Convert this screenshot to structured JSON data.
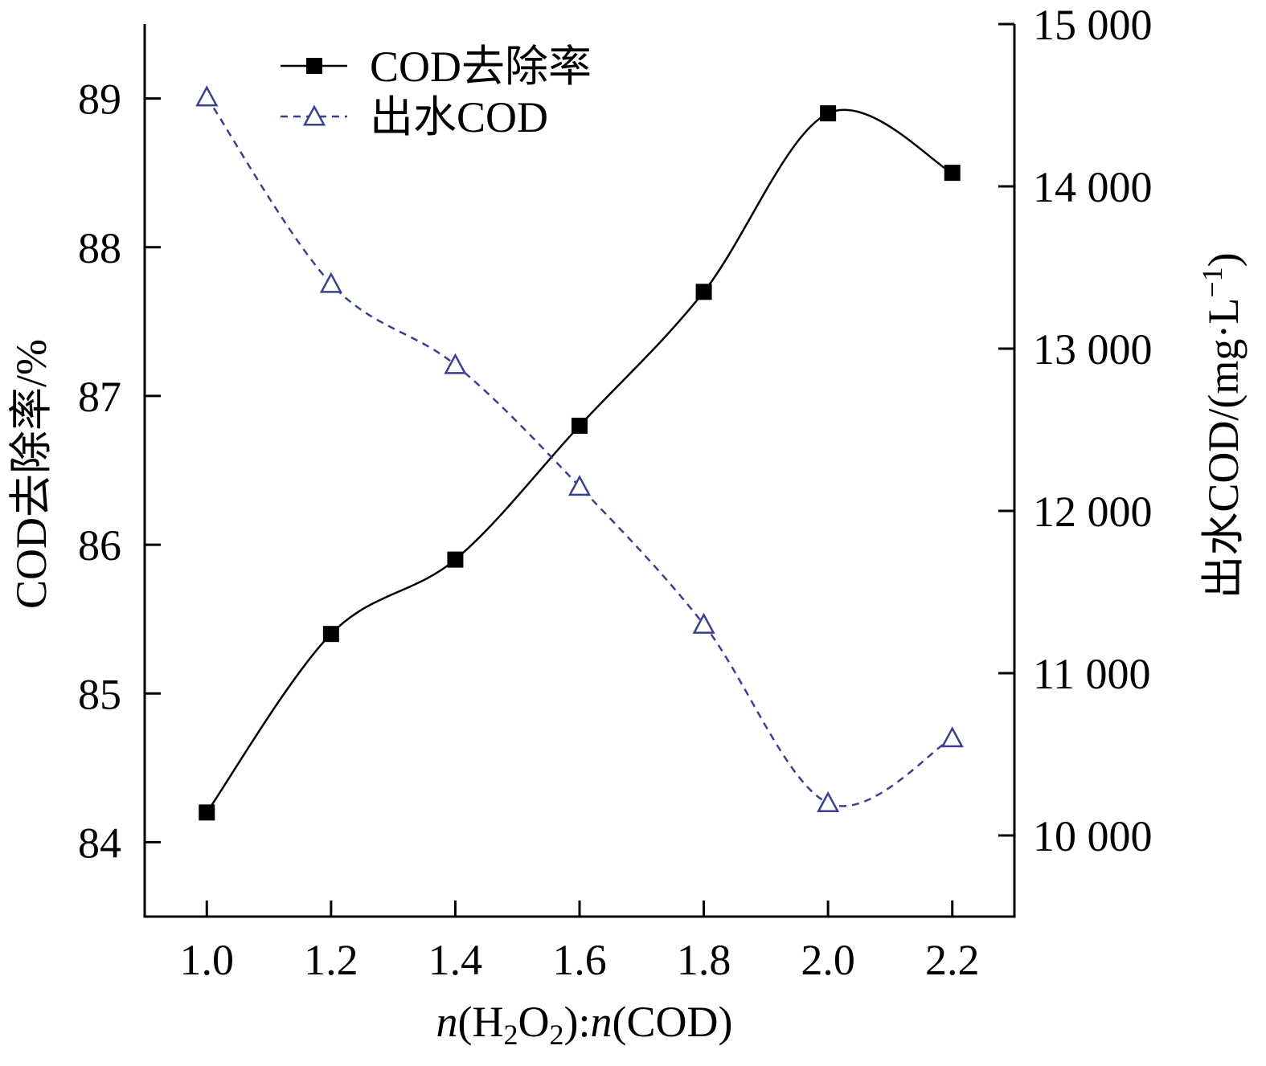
{
  "chart_data": {
    "type": "line",
    "x": [
      1.0,
      1.2,
      1.4,
      1.6,
      1.8,
      2.0,
      2.2
    ],
    "x_tick_labels": [
      "1.0",
      "1.2",
      "1.4",
      "1.6",
      "1.8",
      "2.0",
      "2.2"
    ],
    "xlim": [
      0.9,
      2.3
    ],
    "xlabel": {
      "italic_n1": "n",
      "part1": "(H",
      "sub1": "2",
      "part2": "O",
      "sub2": "2",
      "part3": "):",
      "italic_n2": "n",
      "part4": "(COD)"
    },
    "y_left": {
      "label": "COD去除率/%",
      "lim": [
        83.5,
        89.5
      ],
      "ticks": [
        84,
        85,
        86,
        87,
        88,
        89
      ],
      "tick_labels": [
        "84",
        "85",
        "86",
        "87",
        "88",
        "89"
      ]
    },
    "y_right": {
      "label_main": "出水COD/(mg·L",
      "label_sup": "−1",
      "label_close": ")",
      "lim": [
        9500,
        15000
      ],
      "ticks": [
        10000,
        11000,
        12000,
        13000,
        14000,
        15000
      ],
      "tick_labels": [
        "10 000",
        "11 000",
        "12 000",
        "13 000",
        "14 000",
        "15 000"
      ]
    },
    "series": [
      {
        "name": "COD去除率",
        "axis": "left",
        "values": [
          84.2,
          85.4,
          85.9,
          86.8,
          87.7,
          88.9,
          88.5
        ],
        "marker": "filled-square",
        "line": "solid",
        "color": "#000000"
      },
      {
        "name": "出水COD",
        "axis": "right",
        "values": [
          14550,
          13400,
          12900,
          12150,
          11300,
          10200,
          10600
        ],
        "marker": "open-triangle",
        "line": "dashed",
        "color": "#3a3f8f"
      }
    ],
    "legend_position": "top-left",
    "grid": false
  }
}
